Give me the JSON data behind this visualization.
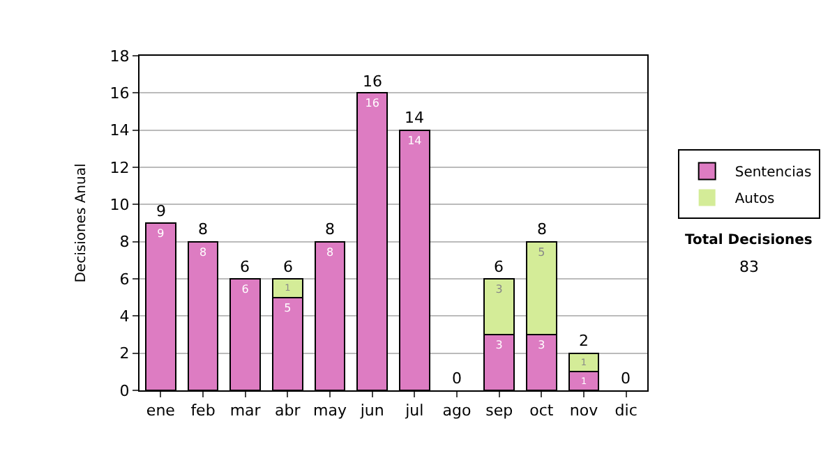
{
  "chart_data": {
    "type": "bar",
    "stacked": true,
    "ylabel": "Decisiones Anual",
    "categories": [
      "ene",
      "feb",
      "mar",
      "abr",
      "may",
      "jun",
      "jul",
      "ago",
      "sep",
      "oct",
      "nov",
      "dic"
    ],
    "series": [
      {
        "name": "Sentencias",
        "color": "#dd7cc2",
        "values": [
          9,
          8,
          6,
          5,
          8,
          16,
          14,
          0,
          3,
          3,
          1,
          0
        ],
        "value_labels": [
          "9",
          "8",
          "6",
          "5",
          "8",
          "16",
          "14",
          null,
          "3",
          "3",
          "1",
          null
        ]
      },
      {
        "name": "Autos",
        "color": "#d4ec98",
        "values": [
          0,
          0,
          0,
          1,
          0,
          0,
          0,
          0,
          3,
          5,
          1,
          0
        ],
        "value_labels": [
          null,
          null,
          null,
          "1",
          null,
          null,
          null,
          null,
          "3",
          "5",
          "1",
          null
        ]
      }
    ],
    "totals": [
      "9",
      "8",
      "6",
      "6",
      "8",
      "16",
      "14",
      "0",
      "6",
      "8",
      "2",
      "0"
    ],
    "ylim": [
      0,
      18
    ],
    "yticks": [
      0,
      2,
      4,
      6,
      8,
      10,
      12,
      14,
      16,
      18
    ],
    "grid": "y",
    "legend": "right",
    "annotations": [
      "Total Decisiones",
      "83"
    ]
  }
}
